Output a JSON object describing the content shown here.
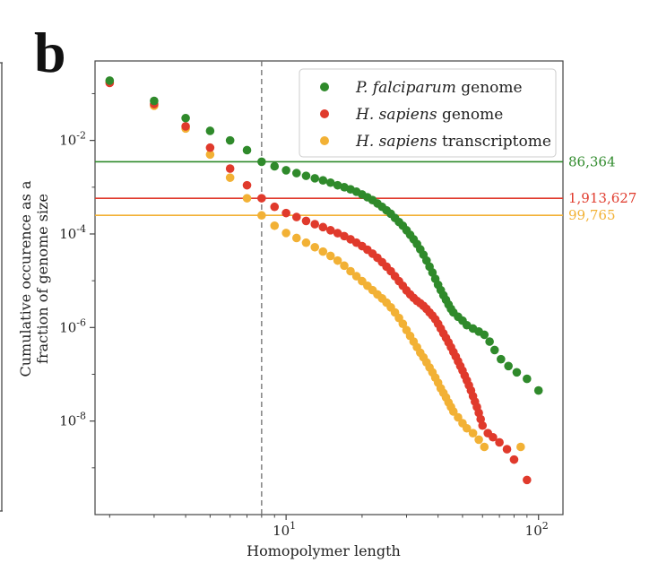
{
  "panel_label": "b",
  "colors": {
    "falciparum": "#2f8a2b",
    "sapiens_genome": "#e03a2c",
    "transcriptome": "#f2b135",
    "axis": "#444444",
    "vline": "#777777"
  },
  "chart_data": {
    "type": "scatter",
    "xscale": "log",
    "yscale": "log",
    "xlim": [
      1.75,
      125
    ],
    "ylim": [
      1e-10,
      0.5
    ],
    "xlabel": "Homopolymer length",
    "ylabel": [
      "Cumulative occurence as a",
      "fraction of genome size"
    ],
    "x_ticks": [
      {
        "base": "10",
        "exp": "1",
        "value": 10
      },
      {
        "base": "10",
        "exp": "2",
        "value": 100
      }
    ],
    "y_ticks": [
      {
        "base": "10",
        "exp": "-2",
        "value": 0.01
      },
      {
        "base": "10",
        "exp": "-4",
        "value": 0.0001
      },
      {
        "base": "10",
        "exp": "-6",
        "value": 1e-06
      },
      {
        "base": "10",
        "exp": "-8",
        "value": 1e-08
      }
    ],
    "vertical_line": {
      "x": 8,
      "style": "dashed"
    },
    "horizontal_lines": [
      {
        "label": "86,364",
        "y": 0.0035,
        "series": "falciparum"
      },
      {
        "label": "1,913,627",
        "y": 0.00058,
        "series": "sapiens_genome"
      },
      {
        "label": "99,765",
        "y": 0.00025,
        "series": "transcriptome"
      }
    ],
    "legend": {
      "position": "top-right",
      "entries": [
        {
          "italic": "P.  falciparum",
          "rest": " genome",
          "series": "falciparum"
        },
        {
          "italic": "H.  sapiens",
          "rest": " genome",
          "series": "sapiens_genome"
        },
        {
          "italic": "H.  sapiens",
          "rest": " transcriptome",
          "series": "transcriptome"
        }
      ]
    },
    "series": [
      {
        "name": "H. sapiens transcriptome",
        "key": "transcriptome",
        "points": [
          [
            2,
            0.18
          ],
          [
            3,
            0.055
          ],
          [
            4,
            0.018
          ],
          [
            5,
            0.005
          ],
          [
            6,
            0.0016
          ],
          [
            7,
            0.00058
          ],
          [
            8,
            0.00025
          ],
          [
            9,
            0.00015
          ],
          [
            10,
            0.000105
          ],
          [
            11,
            8.2e-05
          ],
          [
            12,
            6.5e-05
          ],
          [
            13,
            5.2e-05
          ],
          [
            14,
            4.2e-05
          ],
          [
            15,
            3.4e-05
          ],
          [
            16,
            2.7e-05
          ],
          [
            17,
            2.1e-05
          ],
          [
            18,
            1.6e-05
          ],
          [
            19,
            1.25e-05
          ],
          [
            20,
            9.8e-06
          ],
          [
            21,
            7.8e-06
          ],
          [
            22,
            6.3e-06
          ],
          [
            23,
            5.1e-06
          ],
          [
            24,
            4.2e-06
          ],
          [
            25,
            3.4e-06
          ],
          [
            26,
            2.7e-06
          ],
          [
            27,
            2.1e-06
          ],
          [
            28,
            1.6e-06
          ],
          [
            29,
            1.2e-06
          ],
          [
            30,
            8.8e-07
          ],
          [
            31,
            6.6e-07
          ],
          [
            32,
            5e-07
          ],
          [
            33,
            3.8e-07
          ],
          [
            34,
            2.9e-07
          ],
          [
            35,
            2.3e-07
          ],
          [
            36,
            1.8e-07
          ],
          [
            37,
            1.4e-07
          ],
          [
            38,
            1.1e-07
          ],
          [
            39,
            8.5e-08
          ],
          [
            40,
            6.6e-08
          ],
          [
            41,
            5e-08
          ],
          [
            42,
            4e-08
          ],
          [
            43,
            3.2e-08
          ],
          [
            44,
            2.5e-08
          ],
          [
            45,
            2e-08
          ],
          [
            46,
            1.6e-08
          ],
          [
            48,
            1.2e-08
          ],
          [
            50,
            9e-09
          ],
          [
            52,
            7e-09
          ],
          [
            55,
            5.5e-09
          ],
          [
            58,
            4e-09
          ],
          [
            61,
            2.8e-09
          ],
          [
            85,
            2.8e-09
          ]
        ]
      },
      {
        "name": "H. sapiens genome",
        "key": "sapiens_genome",
        "points": [
          [
            2,
            0.17
          ],
          [
            3,
            0.06
          ],
          [
            4,
            0.02
          ],
          [
            5,
            0.007
          ],
          [
            6,
            0.0025
          ],
          [
            7,
            0.0011
          ],
          [
            8,
            0.00058
          ],
          [
            9,
            0.00038
          ],
          [
            10,
            0.00028
          ],
          [
            11,
            0.00023
          ],
          [
            12,
            0.00019
          ],
          [
            13,
            0.000162
          ],
          [
            14,
            0.00014
          ],
          [
            15,
            0.00012
          ],
          [
            16,
            0.000104
          ],
          [
            17,
            9e-05
          ],
          [
            18,
            7.7e-05
          ],
          [
            19,
            6.5e-05
          ],
          [
            20,
            5.5e-05
          ],
          [
            21,
            4.6e-05
          ],
          [
            22,
            3.8e-05
          ],
          [
            23,
            3.1e-05
          ],
          [
            24,
            2.5e-05
          ],
          [
            25,
            2e-05
          ],
          [
            26,
            1.6e-05
          ],
          [
            27,
            1.25e-05
          ],
          [
            28,
            9.8e-06
          ],
          [
            29,
            7.8e-06
          ],
          [
            30,
            6.2e-06
          ],
          [
            31,
            5.1e-06
          ],
          [
            32,
            4.3e-06
          ],
          [
            33,
            3.7e-06
          ],
          [
            34,
            3.3e-06
          ],
          [
            35,
            2.9e-06
          ],
          [
            36,
            2.5e-06
          ],
          [
            37,
            2.1e-06
          ],
          [
            38,
            1.8e-06
          ],
          [
            39,
            1.5e-06
          ],
          [
            40,
            1.2e-06
          ],
          [
            41,
            9.5e-07
          ],
          [
            42,
            7.5e-07
          ],
          [
            43,
            6e-07
          ],
          [
            44,
            4.8e-07
          ],
          [
            45,
            3.8e-07
          ],
          [
            46,
            3e-07
          ],
          [
            47,
            2.4e-07
          ],
          [
            48,
            1.9e-07
          ],
          [
            49,
            1.5e-07
          ],
          [
            50,
            1.2e-07
          ],
          [
            51,
            9.4e-08
          ],
          [
            52,
            7.4e-08
          ],
          [
            53,
            5.8e-08
          ],
          [
            54,
            4.5e-08
          ],
          [
            55,
            3.4e-08
          ],
          [
            56,
            2.6e-08
          ],
          [
            57,
            2e-08
          ],
          [
            58,
            1.5e-08
          ],
          [
            59,
            1.1e-08
          ],
          [
            60,
            8e-09
          ],
          [
            63,
            5.5e-09
          ],
          [
            66,
            4.5e-09
          ],
          [
            70,
            3.5e-09
          ],
          [
            75,
            2.5e-09
          ],
          [
            80,
            1.5e-09
          ],
          [
            90,
            5.5e-10
          ]
        ]
      },
      {
        "name": "P. falciparum genome",
        "key": "falciparum",
        "points": [
          [
            2,
            0.19
          ],
          [
            3,
            0.07
          ],
          [
            4,
            0.03
          ],
          [
            5,
            0.016
          ],
          [
            6,
            0.01
          ],
          [
            7,
            0.0062
          ],
          [
            8,
            0.0035
          ],
          [
            9,
            0.0028
          ],
          [
            10,
            0.0023
          ],
          [
            11,
            0.002
          ],
          [
            12,
            0.00175
          ],
          [
            13,
            0.00155
          ],
          [
            14,
            0.0014
          ],
          [
            15,
            0.00125
          ],
          [
            16,
            0.0011
          ],
          [
            17,
            0.001
          ],
          [
            18,
            0.0009
          ],
          [
            19,
            0.0008
          ],
          [
            20,
            0.0007
          ],
          [
            21,
            0.00061
          ],
          [
            22,
            0.00053
          ],
          [
            23,
            0.00045
          ],
          [
            24,
            0.00038
          ],
          [
            25,
            0.00032
          ],
          [
            26,
            0.00027
          ],
          [
            27,
            0.00022
          ],
          [
            28,
            0.00018
          ],
          [
            29,
            0.00015
          ],
          [
            30,
            0.00012
          ],
          [
            31,
            9.6e-05
          ],
          [
            32,
            7.7e-05
          ],
          [
            33,
            6.1e-05
          ],
          [
            34,
            4.7e-05
          ],
          [
            35,
            3.6e-05
          ],
          [
            36,
            2.7e-05
          ],
          [
            37,
            2e-05
          ],
          [
            38,
            1.5e-05
          ],
          [
            39,
            1.1e-05
          ],
          [
            40,
            8.2e-06
          ],
          [
            41,
            6.3e-06
          ],
          [
            42,
            4.9e-06
          ],
          [
            43,
            3.9e-06
          ],
          [
            44,
            3.1e-06
          ],
          [
            45,
            2.5e-06
          ],
          [
            46,
            2.1e-06
          ],
          [
            48,
            1.7e-06
          ],
          [
            50,
            1.4e-06
          ],
          [
            52,
            1.12e-06
          ],
          [
            55,
            9.5e-07
          ],
          [
            58,
            8.2e-07
          ],
          [
            61,
            7e-07
          ],
          [
            64,
            5e-07
          ],
          [
            67,
            3.3e-07
          ],
          [
            71,
            2.1e-07
          ],
          [
            76,
            1.5e-07
          ],
          [
            82,
            1.1e-07
          ],
          [
            90,
            8e-08
          ],
          [
            100,
            4.5e-08
          ]
        ]
      }
    ]
  }
}
